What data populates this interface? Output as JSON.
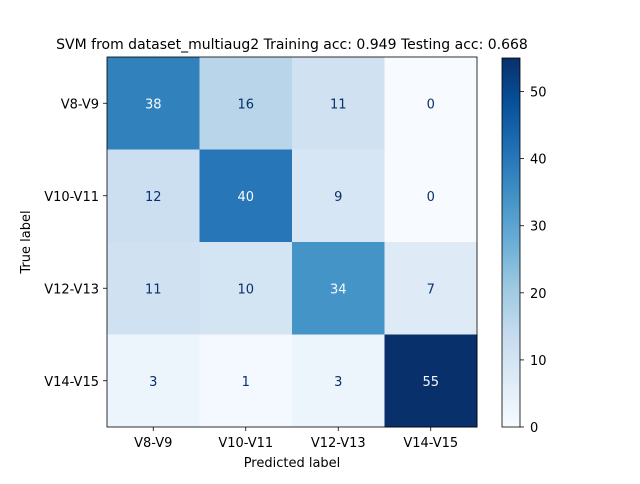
{
  "chart_data": {
    "type": "heatmap",
    "title": "SVM from dataset_multiaug2 Training acc: 0.949 Testing acc: 0.668",
    "xlabel": "Predicted label",
    "ylabel": "True label",
    "x_categories": [
      "V8-V9",
      "V10-V11",
      "V12-V13",
      "V14-V15"
    ],
    "y_categories": [
      "V8-V9",
      "V10-V11",
      "V12-V13",
      "V14-V15"
    ],
    "values": [
      [
        38,
        16,
        11,
        0
      ],
      [
        12,
        40,
        9,
        0
      ],
      [
        11,
        10,
        34,
        7
      ],
      [
        3,
        1,
        3,
        55
      ]
    ],
    "colormap": "Blues",
    "vmin": 0,
    "vmax": 55,
    "colorbar_ticks": [
      0,
      10,
      20,
      30,
      40,
      50
    ],
    "colormap_stops": [
      "#f7fbff",
      "#deebf7",
      "#c6dbef",
      "#9ecae1",
      "#6baed6",
      "#4292c6",
      "#2171b5",
      "#08519c",
      "#08306b"
    ]
  }
}
